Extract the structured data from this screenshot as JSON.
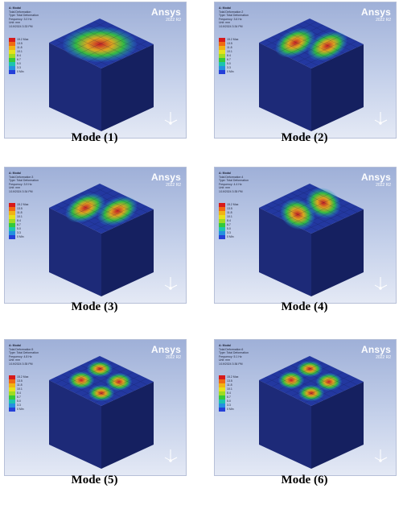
{
  "brand": {
    "name": "Ansys",
    "version": "2022 R2"
  },
  "legend_colors": [
    "#d71a1a",
    "#f06a12",
    "#f1b314",
    "#e6e11a",
    "#9fdc21",
    "#34c93a",
    "#1cc4ae",
    "#2590e0",
    "#2440d8"
  ],
  "modes": [
    {
      "caption": "Mode (1)",
      "info": [
        "A: Modal",
        "Total Deformation",
        "Type: Total Deformation",
        "Frequency: 3.0 Hz",
        "Unit: mm",
        "1/19/2024 3:33 PM"
      ],
      "legend_labels": [
        "15.2 Max",
        "13.5",
        "11.8",
        "10.1",
        "8.4",
        "6.7",
        "5.0",
        "3.3",
        "0 Min"
      ],
      "pattern": "center"
    },
    {
      "caption": "Mode (2)",
      "info": [
        "A: Modal",
        "Total Deformation 2",
        "Type: Total Deformation",
        "Frequency: 3.6 Hz",
        "Unit: mm",
        "1/19/2024 3:34 PM"
      ],
      "legend_labels": [
        "15.2 Max",
        "13.5",
        "11.8",
        "10.1",
        "8.4",
        "6.7",
        "5.0",
        "3.3",
        "0 Min"
      ],
      "pattern": "band-x"
    },
    {
      "caption": "Mode (3)",
      "info": [
        "A: Modal",
        "Total Deformation 3",
        "Type: Total Deformation",
        "Frequency: 3.9 Hz",
        "Unit: mm",
        "1/19/2024 3:34 PM"
      ],
      "legend_labels": [
        "15.2 Max",
        "13.5",
        "11.8",
        "10.1",
        "8.4",
        "6.7",
        "5.0",
        "3.3",
        "0 Min"
      ],
      "pattern": "band-x"
    },
    {
      "caption": "Mode (4)",
      "info": [
        "A: Modal",
        "Total Deformation 4",
        "Type: Total Deformation",
        "Frequency: 4.4 Hz",
        "Unit: mm",
        "1/19/2024 3:35 PM"
      ],
      "legend_labels": [
        "15.2 Max",
        "13.5",
        "11.8",
        "10.1",
        "8.4",
        "6.7",
        "5.0",
        "3.3",
        "0 Min"
      ],
      "pattern": "band-y"
    },
    {
      "caption": "Mode (5)",
      "info": [
        "A: Modal",
        "Total Deformation 5",
        "Type: Total Deformation",
        "Frequency: 4.8 Hz",
        "Unit: mm",
        "1/19/2024 3:35 PM"
      ],
      "legend_labels": [
        "15.2 Max",
        "13.5",
        "11.8",
        "10.1",
        "8.4",
        "6.7",
        "5.0",
        "3.3",
        "0 Min"
      ],
      "pattern": "quad"
    },
    {
      "caption": "Mode (6)",
      "info": [
        "A: Modal",
        "Total Deformation 6",
        "Type: Total Deformation",
        "Frequency: 5.1 Hz",
        "Unit: mm",
        "1/19/2024 3:36 PM"
      ],
      "legend_labels": [
        "15.2 Max",
        "13.5",
        "11.8",
        "10.1",
        "8.4",
        "6.7",
        "5.0",
        "3.3",
        "0 Min"
      ],
      "pattern": "quad"
    }
  ]
}
